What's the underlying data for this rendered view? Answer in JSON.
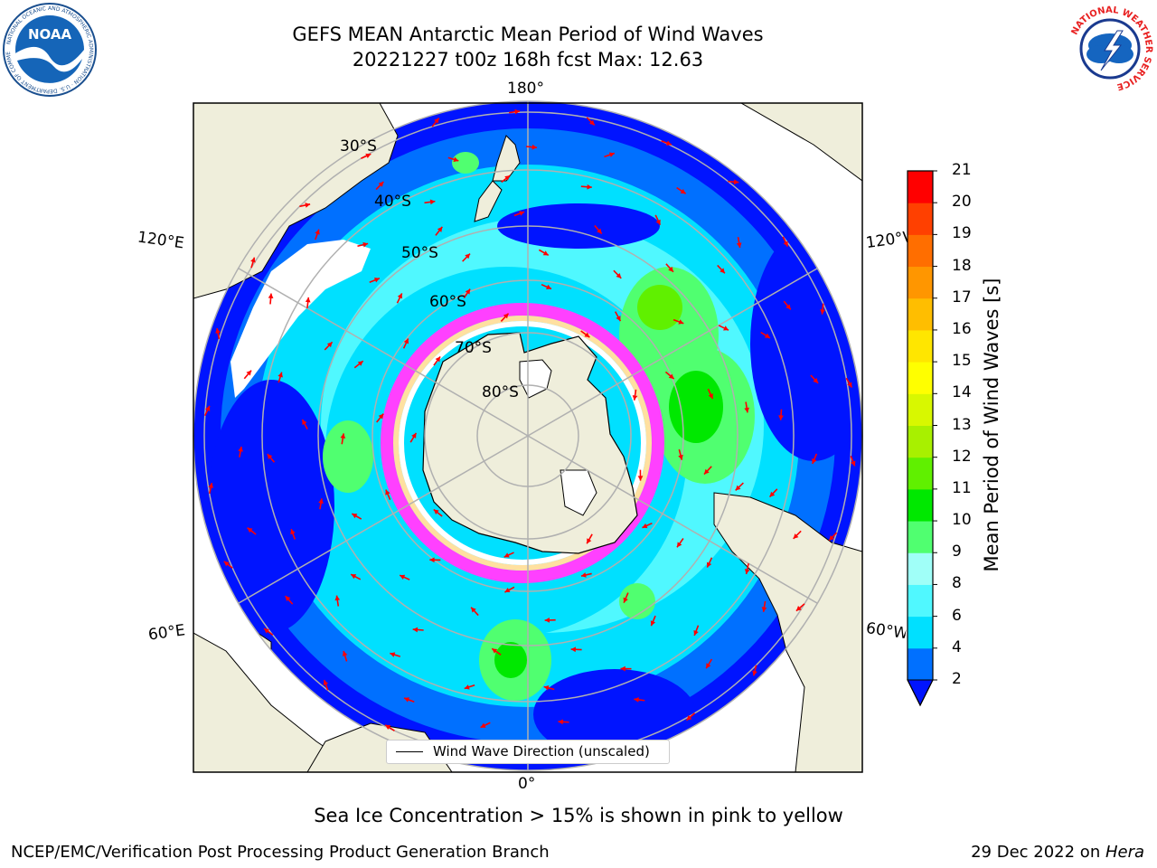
{
  "header": {
    "title_line1": "GEFS MEAN Antarctic Mean Period of Wind Waves",
    "title_line2": "20221227 t00z 168h fcst   Max: 12.63"
  },
  "logos": {
    "noaa_text": "NOAA",
    "nws_ring_text": "NATIONAL WEATHER SERVICE"
  },
  "map": {
    "projection": "south-polar-stereographic",
    "longitude_labels": {
      "top": "180°",
      "bottom": "0°",
      "left_upper": "120°E",
      "left_lower": "60°E",
      "right_upper": "120°W",
      "right_lower": "60°W"
    },
    "latitude_labels": [
      "30°S",
      "40°S",
      "50°S",
      "60°S",
      "70°S",
      "80°S"
    ],
    "land_color": "#efeedb",
    "arrow_color": "#ff0000"
  },
  "colorbar": {
    "label": "Mean Period of Wind Waves [s]",
    "ticks": [
      "2",
      "4",
      "6",
      "8",
      "9",
      "10",
      "11",
      "12",
      "13",
      "14",
      "15",
      "16",
      "17",
      "18",
      "19",
      "20",
      "21"
    ],
    "levels": [
      2,
      4,
      6,
      8,
      9,
      10,
      11,
      12,
      13,
      14,
      15,
      16,
      17,
      18,
      19,
      20,
      21
    ],
    "colors": [
      "#0070ff",
      "#00e0ff",
      "#50f8ff",
      "#a0fff8",
      "#50ff70",
      "#00e800",
      "#60f000",
      "#a8f000",
      "#d8f800",
      "#ffff00",
      "#ffe600",
      "#ffbe00",
      "#ff9600",
      "#ff6e00",
      "#ff4000",
      "#ff0000"
    ],
    "under_color": "#0014ff"
  },
  "legend": {
    "label": "Wind Wave Direction (unscaled)"
  },
  "footer": {
    "ice_note": "Sea Ice Concentration > 15% is shown in pink to yellow",
    "credit": "NCEP/EMC/Verification Post Processing Product Generation Branch",
    "date": "29 Dec 2022 on ",
    "machine": "Hera"
  }
}
